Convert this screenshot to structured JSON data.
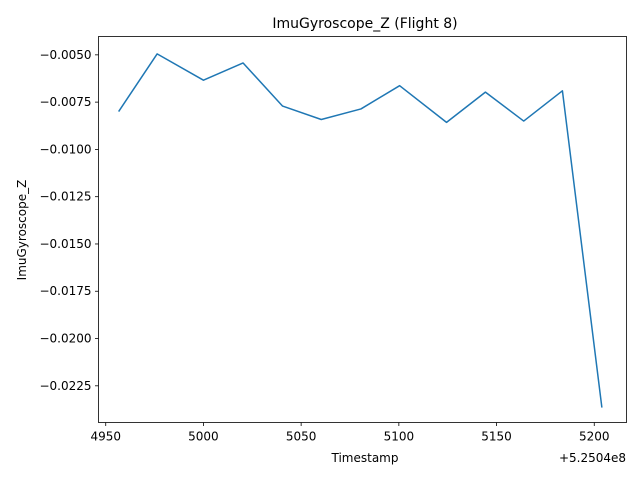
{
  "chart_data": {
    "type": "line",
    "title": "ImuGyroscope_Z (Flight 8)",
    "xlabel": "Timestamp",
    "ylabel": "ImuGyroscope_Z",
    "x_offset_label": "+5.2504e8",
    "xlim": [
      4946.3,
      5216.5
    ],
    "ylim": [
      -0.02444,
      -0.00403
    ],
    "x_ticks": [
      4950,
      5000,
      5050,
      5100,
      5150,
      5200
    ],
    "x_tick_labels": [
      "4950",
      "5000",
      "5050",
      "5100",
      "5150",
      "5200"
    ],
    "y_ticks": [
      -0.005,
      -0.0075,
      -0.01,
      -0.0125,
      -0.015,
      -0.0175,
      -0.02,
      -0.0225
    ],
    "y_tick_labels": [
      "−0.0050",
      "−0.0075",
      "−0.0100",
      "−0.0125",
      "−0.0150",
      "−0.0175",
      "−0.0200",
      "−0.0225"
    ],
    "grid": false,
    "series": [
      {
        "color": "#1f77b4",
        "x": [
          4956.6,
          4976.3,
          5000.0,
          5020.3,
          5040.5,
          5060.3,
          5080.6,
          5100.4,
          5124.4,
          5144.3,
          5163.9,
          5183.7,
          5203.9
        ],
        "y": [
          -0.008,
          -0.00495,
          -0.00634,
          -0.00543,
          -0.00771,
          -0.00842,
          -0.00786,
          -0.00663,
          -0.00857,
          -0.00697,
          -0.0085,
          -0.0069,
          -0.02365
        ]
      }
    ]
  }
}
